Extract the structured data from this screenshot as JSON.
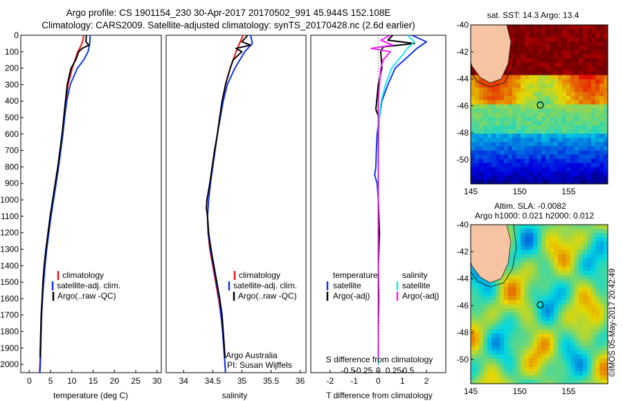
{
  "header": {
    "title_line1": "Argo profile: CS 1901154_230 30-Apr-2017 20170502_991 45.944S 152.108E",
    "title_line2": "Climatology: CARS2009. Satellite-adjusted climatology: synTS_20170428.nc (2.6d earlier)"
  },
  "colors": {
    "climatology": "#ee1111",
    "satellite": "#1133ee",
    "argo": "#000000",
    "satellite_s": "#22e4ee",
    "argo_s": "#ee22ee"
  },
  "chart_data": [
    {
      "id": "temperature",
      "type": "line",
      "xlabel": "temperature (deg C)",
      "ylabel": "",
      "xlim": [
        -2,
        31
      ],
      "ylim": [
        2050,
        0
      ],
      "xticks": [
        0,
        5,
        10,
        15,
        20,
        25,
        30
      ],
      "yticks": [
        0,
        100,
        200,
        300,
        400,
        500,
        600,
        700,
        800,
        900,
        1000,
        1100,
        1200,
        1300,
        1400,
        1500,
        1600,
        1700,
        1800,
        1900,
        2000
      ],
      "legend": [
        "climatology",
        "satellite-adj. clim.",
        "Argo(..raw -QC)"
      ],
      "legend_position": "lower-middle",
      "series": [
        {
          "name": "climatology",
          "color_key": "climatology",
          "depth": [
            0,
            50,
            100,
            200,
            300,
            400,
            500,
            600,
            700,
            800,
            900,
            1000,
            1100,
            1200,
            1300,
            1400,
            1500,
            1600,
            1700,
            1800,
            1900,
            2000,
            2050
          ],
          "values": [
            12.8,
            12.4,
            11.4,
            10.1,
            9.1,
            8.6,
            8.2,
            7.8,
            7.3,
            6.8,
            6.2,
            5.6,
            5.0,
            4.5,
            4.0,
            3.6,
            3.3,
            3.1,
            2.9,
            2.7,
            2.6,
            2.5,
            2.4
          ]
        },
        {
          "name": "satellite-adj. clim.",
          "color_key": "satellite",
          "depth": [
            0,
            50,
            100,
            150,
            200,
            300,
            400,
            500,
            600,
            700,
            800,
            900,
            1000,
            1100,
            1200,
            1300,
            1400,
            1500,
            1600,
            1700,
            1800,
            1900,
            2000,
            2050
          ],
          "values": [
            14.3,
            14.2,
            13.8,
            12.8,
            11.3,
            9.6,
            8.8,
            8.3,
            7.9,
            7.4,
            6.9,
            6.3,
            5.7,
            5.1,
            4.6,
            4.1,
            3.7,
            3.4,
            3.1,
            2.9,
            2.8,
            2.7,
            2.6,
            2.5
          ]
        },
        {
          "name": "Argo(..raw -QC)",
          "color_key": "argo",
          "depth": [
            0,
            40,
            60,
            80,
            100,
            150,
            200,
            300,
            400,
            500,
            600,
            700,
            800,
            900,
            1000,
            1100,
            1200,
            1300,
            1400,
            1500,
            1600,
            1700,
            1800,
            1900,
            1960
          ],
          "values": [
            13.4,
            13.3,
            14.0,
            12.4,
            11.6,
            10.9,
            9.8,
            8.9,
            8.5,
            8.1,
            7.7,
            7.2,
            6.7,
            6.1,
            5.5,
            4.9,
            4.4,
            3.9,
            3.5,
            3.2,
            3.0,
            2.8,
            2.7,
            2.6,
            2.55
          ]
        }
      ]
    },
    {
      "id": "salinity",
      "type": "line",
      "xlabel": "salinity",
      "ylabel": "",
      "xlim": [
        33.7,
        36.1
      ],
      "ylim": [
        2050,
        0
      ],
      "xticks": [
        34,
        34.5,
        35,
        35.5,
        36
      ],
      "xtick_labels": [
        "34",
        "34.5",
        "35",
        "35.5",
        "36"
      ],
      "legend": [
        "climatology",
        "satellite-adj. clim.",
        "Argo(..raw -QC)"
      ],
      "legend_position": "lower-right",
      "annotation": [
        "Argo Australia",
        "PI: Susan Wijffels"
      ],
      "series": [
        {
          "name": "climatology",
          "color_key": "climatology",
          "depth": [
            0,
            100,
            200,
            300,
            400,
            500,
            600,
            700,
            800,
            900,
            1000,
            1100,
            1200,
            1300,
            1400,
            1500,
            1600,
            1700,
            1800,
            1900,
            2000,
            2050
          ],
          "values": [
            35.02,
            34.9,
            34.8,
            34.72,
            34.67,
            34.62,
            34.58,
            34.54,
            34.5,
            34.46,
            34.43,
            34.41,
            34.42,
            34.45,
            34.5,
            34.55,
            34.6,
            34.64,
            34.67,
            34.69,
            34.71,
            34.72
          ]
        },
        {
          "name": "satellite-adj. clim.",
          "color_key": "satellite",
          "depth": [
            0,
            50,
            100,
            200,
            300,
            400,
            500,
            600,
            700,
            800,
            900,
            1000,
            1100,
            1200,
            1300,
            1400,
            1500,
            1600,
            1700,
            1800,
            1900,
            2000,
            2050
          ],
          "values": [
            35.15,
            35.18,
            35.05,
            34.88,
            34.75,
            34.68,
            34.63,
            34.58,
            34.54,
            34.5,
            34.46,
            34.43,
            34.41,
            34.42,
            34.46,
            34.51,
            34.56,
            34.61,
            34.64,
            34.67,
            34.69,
            34.71,
            34.72
          ]
        },
        {
          "name": "Argo(..raw -QC)",
          "color_key": "argo",
          "depth": [
            0,
            40,
            60,
            80,
            100,
            150,
            200,
            300,
            400,
            500,
            600,
            700,
            800,
            900,
            1000,
            1050,
            1100,
            1200,
            1300,
            1400,
            1500,
            1600,
            1700,
            1800,
            1900,
            1960
          ],
          "values": [
            35.1,
            35.0,
            35.15,
            34.9,
            35.0,
            34.85,
            34.8,
            34.72,
            34.66,
            34.62,
            34.58,
            34.53,
            34.49,
            34.45,
            34.4,
            34.39,
            34.41,
            34.43,
            34.47,
            34.52,
            34.57,
            34.62,
            34.66,
            34.68,
            34.7,
            34.71
          ]
        }
      ]
    },
    {
      "id": "difference",
      "type": "line",
      "xlabel": "T difference from climatology",
      "xlabel_top": "S difference from climatology",
      "ylabel": "",
      "xlim": [
        -2.8,
        2.8
      ],
      "ylim": [
        2050,
        0
      ],
      "xticks": [
        -2,
        -1,
        0,
        1,
        2
      ],
      "xtick_labels": [
        "-2",
        "-1",
        "0",
        "1",
        "2"
      ],
      "s_xticks": [
        -1.25,
        -0.63,
        0,
        0.63,
        1.25
      ],
      "s_xtick_labels": [
        "-0.5",
        "-0.25",
        "0",
        "0.25",
        "0.5"
      ],
      "legend": [
        "temperature",
        "satellite",
        "Argo(-adj)",
        "salinity",
        "satellite",
        "Argo(-adj)"
      ],
      "legend_position": "lower-middle",
      "series": [
        {
          "name": "satellite",
          "color_key": "satellite",
          "depth": [
            0,
            40,
            80,
            120,
            200,
            300,
            400,
            500,
            600,
            700,
            800,
            850,
            900,
            1000,
            1200,
            1400,
            1600,
            1800,
            2000
          ],
          "values": [
            1.4,
            2.0,
            1.6,
            1.3,
            0.7,
            0.4,
            0.15,
            0.05,
            -0.05,
            -0.08,
            -0.1,
            -0.15,
            -0.05,
            0.0,
            0.02,
            0.0,
            0.0,
            0.0,
            0.0
          ]
        },
        {
          "name": "Argo(-adj)",
          "color_key": "argo",
          "depth": [
            0,
            30,
            50,
            70,
            100,
            200,
            300,
            450,
            500,
            600,
            800,
            1000,
            1200,
            1400,
            1600,
            1800,
            1960
          ],
          "values": [
            0.6,
            0.4,
            1.5,
            0.2,
            0.1,
            0.15,
            0.0,
            -0.1,
            0.02,
            0.0,
            0.0,
            0.0,
            0.05,
            0.0,
            0.02,
            0.0,
            0.0
          ]
        },
        {
          "name": "satellite",
          "color_key": "satellite_s",
          "depth": [
            0,
            40,
            80,
            120,
            200,
            300,
            400,
            500,
            600,
            800,
            1000,
            1200,
            1400,
            1600,
            1800,
            2000
          ],
          "values": [
            1.2,
            1.5,
            1.2,
            1.0,
            0.55,
            0.3,
            0.12,
            0.05,
            0.02,
            0.0,
            0.0,
            0.0,
            0.0,
            0.0,
            0.0,
            0.0
          ]
        },
        {
          "name": "Argo(-adj)",
          "color_key": "argo_s",
          "depth": [
            0,
            30,
            60,
            80,
            100,
            150,
            200,
            300,
            400,
            600,
            800,
            1000,
            1200,
            1400,
            1600,
            1800,
            1960
          ],
          "values": [
            0.5,
            0.1,
            0.6,
            -0.3,
            0.5,
            0.2,
            0.1,
            0.05,
            0.0,
            0.0,
            0.0,
            0.0,
            0.0,
            0.0,
            0.0,
            0.0,
            0.0
          ]
        }
      ]
    },
    {
      "id": "sst_map",
      "type": "heatmap",
      "title": "sat. SST: 14.3 Argo: 13.4",
      "xlim": [
        145,
        159
      ],
      "ylim": [
        -51.8,
        -40
      ],
      "xticks": [
        145,
        150,
        155
      ],
      "yticks": [
        -40,
        -42,
        -44,
        -46,
        -48,
        -50
      ],
      "marker": {
        "lon": 152.108,
        "lat": -45.944
      }
    },
    {
      "id": "sla_map",
      "type": "heatmap",
      "title_line1": "Altim. SLA: -0.0082",
      "title_line2": "Argo h1000: 0.021 h2000: 0.012",
      "xlim": [
        145,
        159
      ],
      "ylim": [
        -51.8,
        -40
      ],
      "xticks": [
        145,
        150,
        155
      ],
      "yticks": [
        -40,
        -42,
        -44,
        -46,
        -48,
        -50
      ],
      "marker": {
        "lon": 152.108,
        "lat": -45.944
      }
    }
  ],
  "footer": {
    "stamp": "©IMOS 05-May-2017 20:42:49"
  }
}
